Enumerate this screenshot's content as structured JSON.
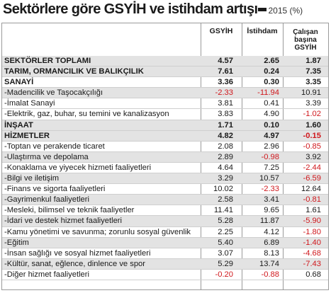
{
  "header": {
    "title": "Sektörlere göre GSYİH ve istihdam artışı",
    "year_note": "2015 (%)"
  },
  "columns": {
    "gsyih": "GSYİH",
    "istihdam": "İstihdam",
    "calisan_line1": "Çalışan",
    "calisan_line2": "başına",
    "calisan_line3": "GSYİH"
  },
  "colors": {
    "negative": "#d0181d",
    "shade": "#e3e3e3"
  },
  "rows": [
    {
      "label": "SEKTÖRLER TOPLAMI",
      "gsyih": "4.57",
      "istihdam": "2.65",
      "calisan": "1.87",
      "bold": true,
      "shade": true
    },
    {
      "label": "TARIM, ORMANCILIK VE BALIKÇILIK",
      "gsyih": "7.61",
      "istihdam": "0.24",
      "calisan": "7.35",
      "bold": true,
      "shade": true
    },
    {
      "label": "SANAYİ",
      "gsyih": "3.36",
      "istihdam": "0.30",
      "calisan": "3.35",
      "bold": true,
      "shade": false
    },
    {
      "label": "-Madencilik ve Taşocakçılığı",
      "gsyih": "-2.33",
      "istihdam": "-11.94",
      "calisan": "10.91",
      "bold": false,
      "shade": true
    },
    {
      "label": "-İmalat Sanayi",
      "gsyih": "3.81",
      "istihdam": "0.41",
      "calisan": "3.39",
      "bold": false,
      "shade": false
    },
    {
      "label": "-Elektrik, gaz, buhar, su temini ve kanalizasyon",
      "gsyih": "3.83",
      "istihdam": "4.90",
      "calisan": "-1.02",
      "bold": false,
      "shade": false
    },
    {
      "label": "İNŞAAT",
      "gsyih": "1.71",
      "istihdam": "0.10",
      "calisan": "1.60",
      "bold": true,
      "shade": true
    },
    {
      "label": "HİZMETLER",
      "gsyih": "4.82",
      "istihdam": "4.97",
      "calisan": "-0.15",
      "bold": true,
      "shade": true
    },
    {
      "label": "-Toptan ve perakende ticaret",
      "gsyih": "2.08",
      "istihdam": "2.96",
      "calisan": "-0.85",
      "bold": false,
      "shade": false
    },
    {
      "label": "-Ulaştırma ve depolama",
      "gsyih": "2.89",
      "istihdam": "-0.98",
      "calisan": "3.92",
      "bold": false,
      "shade": true
    },
    {
      "label": "-Konaklama ve yiyecek hizmeti faaliyetleri",
      "gsyih": "4.64",
      "istihdam": "7.25",
      "calisan": "-2.44",
      "bold": false,
      "shade": false
    },
    {
      "label": "-Bilgi ve iletişim",
      "gsyih": "3.29",
      "istihdam": "10.57",
      "calisan": "-6.59",
      "bold": false,
      "shade": true
    },
    {
      "label": "-Finans ve sigorta faaliyetleri",
      "gsyih": "10.02",
      "istihdam": "-2.33",
      "calisan": "12.64",
      "bold": false,
      "shade": false
    },
    {
      "label": "-Gayrimenkul faaliyetleri",
      "gsyih": "2.58",
      "istihdam": "3.41",
      "calisan": "-0.81",
      "bold": false,
      "shade": true
    },
    {
      "label": "-Mesleki, bilimsel ve teknik faaliyetler",
      "gsyih": "11.41",
      "istihdam": "9.65",
      "calisan": "1.61",
      "bold": false,
      "shade": false
    },
    {
      "label": "-İdari ve destek hizmet faaliyetleri",
      "gsyih": "5.28",
      "istihdam": "11.87",
      "calisan": "-5.90",
      "bold": false,
      "shade": true
    },
    {
      "label": "-Kamu yönetimi ve savunma; zorunlu sosyal güvenlik",
      "gsyih": "2.25",
      "istihdam": "4.12",
      "calisan": "-1.80",
      "bold": false,
      "shade": false
    },
    {
      "label": "-Eğitim",
      "gsyih": "5.40",
      "istihdam": "6.89",
      "calisan": "-1.40",
      "bold": false,
      "shade": true
    },
    {
      "label": "-İnsan sağlığı ve sosyal hizmet faaliyetleri",
      "gsyih": "3.07",
      "istihdam": "8.13",
      "calisan": "-4.68",
      "bold": false,
      "shade": false
    },
    {
      "label": "-Kültür, sanat, eğlence, dinlence ve spor",
      "gsyih": "5.29",
      "istihdam": "13.74",
      "calisan": "-7.43",
      "bold": false,
      "shade": true
    },
    {
      "label": "-Diğer hizmet faaliyetleri",
      "gsyih": "-0.20",
      "istihdam": "-0.88",
      "calisan": "0.68",
      "bold": false,
      "shade": false
    }
  ]
}
